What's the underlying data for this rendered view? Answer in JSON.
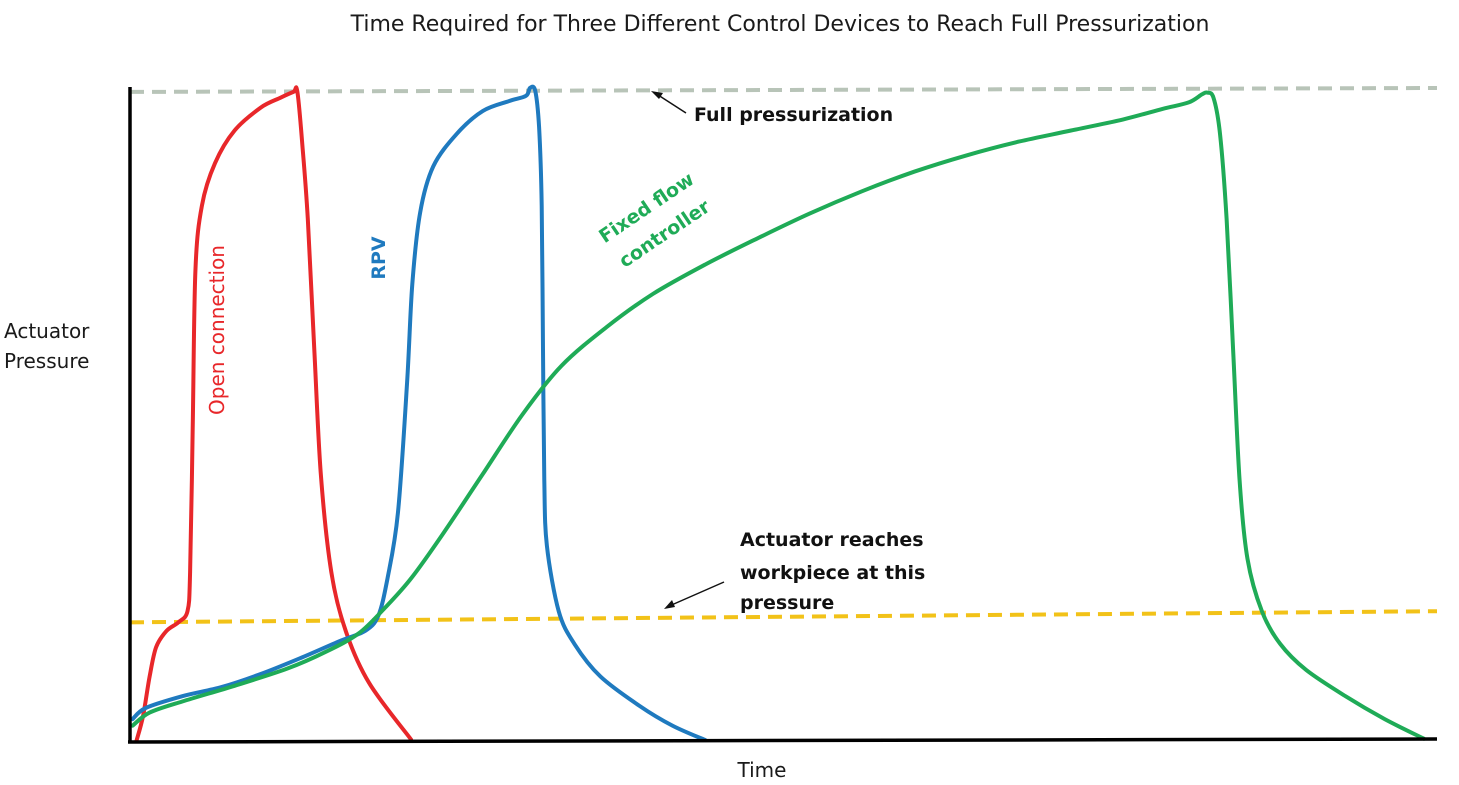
{
  "chart_data": {
    "type": "line",
    "title": "Time Required for Three Different Control Devices to Reach Full Pressurization",
    "xlabel": "Time",
    "ylabel": "Actuator\nPressure",
    "ylabel_lines": [
      "Actuator",
      "Pressure"
    ],
    "xlim": [
      0,
      100
    ],
    "ylim": [
      0,
      100
    ],
    "grid": false,
    "legend": "none",
    "reference_lines": [
      {
        "name": "Full pressurization",
        "y_start": 99.4,
        "y_end": 100,
        "color": "#b8c4b8",
        "style": "dashed"
      },
      {
        "name": "Actuator reaches workpiece at this pressure",
        "y_start": 18.3,
        "y_end": 20,
        "color": "#f2c218",
        "style": "dashed"
      }
    ],
    "series": [
      {
        "name": "Open connection",
        "color": "#e8272a",
        "label_lines": [
          "Open connection"
        ],
        "points": [
          [
            0.5,
            0.2
          ],
          [
            1.0,
            4.0
          ],
          [
            1.5,
            10.0
          ],
          [
            2.0,
            14.5
          ],
          [
            2.8,
            17.0
          ],
          [
            3.7,
            18.3
          ],
          [
            4.4,
            20.0
          ],
          [
            4.6,
            26.0
          ],
          [
            4.8,
            48.0
          ],
          [
            5.0,
            72.0
          ],
          [
            5.5,
            82.0
          ],
          [
            6.5,
            88.5
          ],
          [
            8.0,
            93.5
          ],
          [
            10.0,
            97.0
          ],
          [
            11.5,
            98.5
          ],
          [
            12.5,
            99.4
          ],
          [
            12.8,
            99.5
          ],
          [
            13.2,
            91.0
          ],
          [
            13.6,
            80.0
          ],
          [
            14.1,
            60.0
          ],
          [
            14.6,
            41.0
          ],
          [
            15.4,
            26.0
          ],
          [
            16.5,
            17.0
          ],
          [
            18.3,
            9.0
          ],
          [
            21.5,
            0.4
          ]
        ]
      },
      {
        "name": "RPV",
        "color": "#1f7abf",
        "label_lines": [
          "RPV"
        ],
        "points": [
          [
            0.2,
            3.5
          ],
          [
            1.2,
            5.2
          ],
          [
            4.0,
            7.0
          ],
          [
            7.0,
            8.4
          ],
          [
            10.0,
            10.4
          ],
          [
            13.0,
            12.8
          ],
          [
            16.0,
            15.4
          ],
          [
            18.0,
            17.0
          ],
          [
            19.0,
            19.3
          ],
          [
            19.7,
            25.0
          ],
          [
            20.5,
            35.0
          ],
          [
            21.2,
            55.0
          ],
          [
            21.6,
            70.0
          ],
          [
            22.2,
            81.0
          ],
          [
            23.2,
            88.0
          ],
          [
            25.0,
            93.0
          ],
          [
            27.0,
            96.5
          ],
          [
            29.0,
            98.0
          ],
          [
            30.3,
            98.8
          ],
          [
            30.6,
            100.0
          ],
          [
            31.0,
            99.6
          ],
          [
            31.3,
            94.0
          ],
          [
            31.5,
            82.0
          ],
          [
            31.6,
            60.0
          ],
          [
            31.7,
            40.0
          ],
          [
            31.9,
            30.0
          ],
          [
            32.8,
            20.0
          ],
          [
            34.0,
            15.0
          ],
          [
            36.0,
            10.0
          ],
          [
            39.0,
            5.5
          ],
          [
            41.5,
            2.5
          ],
          [
            44.0,
            0.3
          ]
        ]
      },
      {
        "name": "Fixed flow controller",
        "color": "#1fab57",
        "label_lines": [
          "Fixed flow",
          "controller"
        ],
        "points": [
          [
            0.2,
            2.5
          ],
          [
            1.5,
            4.5
          ],
          [
            4.0,
            6.2
          ],
          [
            8.0,
            8.6
          ],
          [
            12.0,
            11.2
          ],
          [
            15.0,
            13.8
          ],
          [
            17.5,
            16.6
          ],
          [
            19.5,
            20.5
          ],
          [
            21.5,
            25.0
          ],
          [
            24.0,
            32.0
          ],
          [
            27.0,
            41.0
          ],
          [
            30.0,
            50.0
          ],
          [
            33.0,
            57.5
          ],
          [
            36.5,
            63.5
          ],
          [
            40.0,
            68.5
          ],
          [
            44.0,
            73.0
          ],
          [
            48.0,
            77.0
          ],
          [
            52.0,
            80.8
          ],
          [
            56.0,
            84.2
          ],
          [
            60.0,
            87.2
          ],
          [
            64.0,
            89.7
          ],
          [
            68.0,
            91.8
          ],
          [
            72.0,
            93.5
          ],
          [
            76.0,
            95.2
          ],
          [
            79.0,
            96.8
          ],
          [
            81.0,
            97.8
          ],
          [
            82.0,
            99.0
          ],
          [
            82.4,
            99.3
          ],
          [
            82.9,
            98.5
          ],
          [
            83.4,
            93.0
          ],
          [
            83.9,
            80.0
          ],
          [
            84.4,
            60.0
          ],
          [
            84.9,
            40.0
          ],
          [
            85.5,
            28.0
          ],
          [
            86.6,
            20.0
          ],
          [
            88.0,
            15.0
          ],
          [
            90.0,
            11.0
          ],
          [
            93.0,
            7.0
          ],
          [
            96.0,
            3.5
          ],
          [
            99.0,
            0.5
          ]
        ]
      }
    ],
    "annotations": [
      {
        "text_lines": [
          "Full pressurization"
        ]
      },
      {
        "text_lines": [
          "Actuator reaches",
          "workpiece at this",
          "pressure"
        ]
      }
    ]
  }
}
